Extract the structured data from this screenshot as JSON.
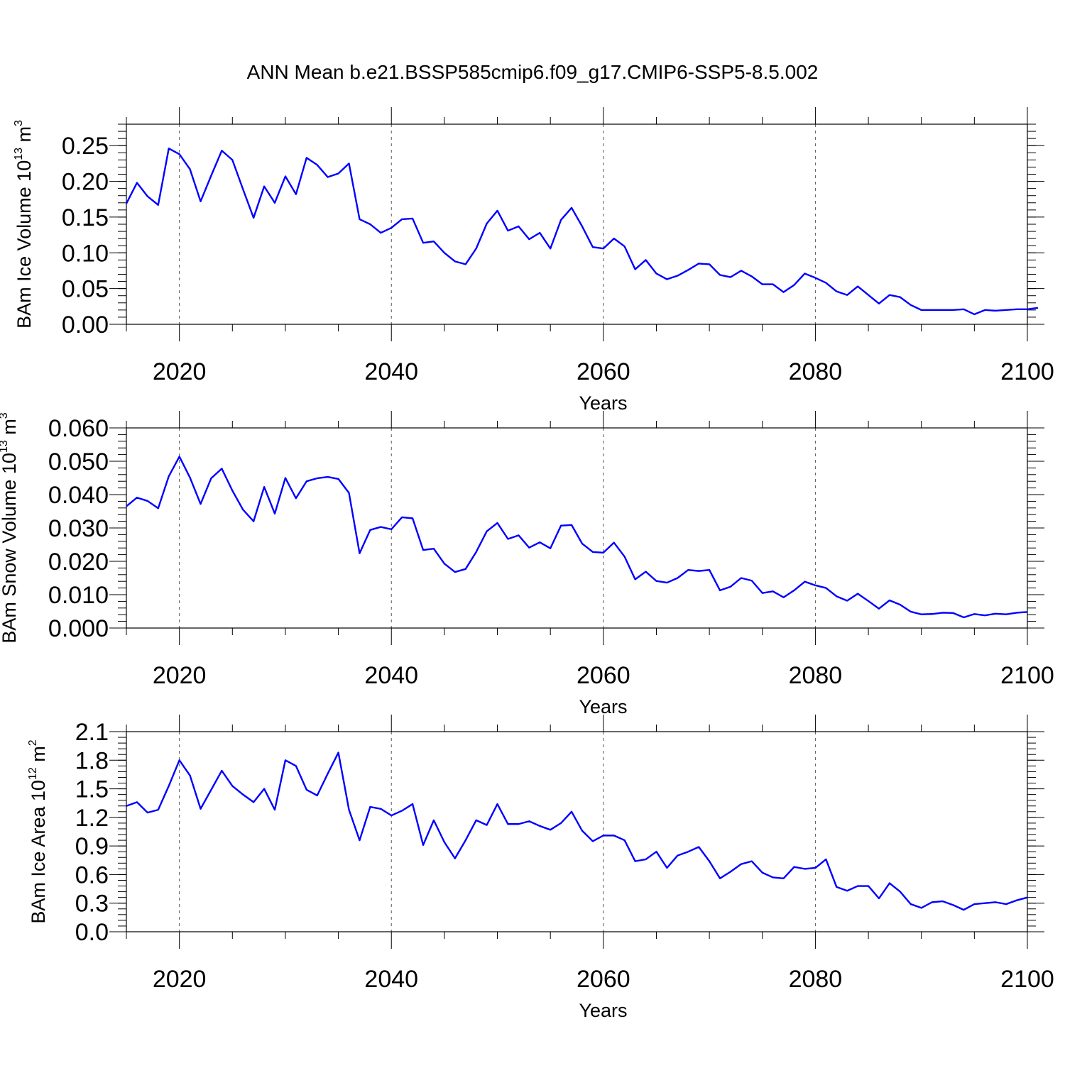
{
  "title": "ANN Mean b.e21.BSSP585cmip6.f09_g17.CMIP6-SSP5-8.5.002",
  "colors": {
    "line": "#0000ff",
    "axis": "#000000",
    "grid": "#555555"
  },
  "chart_data": [
    {
      "type": "line",
      "ylabel": {
        "main": "BAm Ice Volume 10",
        "sup": "13",
        "unit": " m",
        "unit_sup": "3"
      },
      "xlabel": "Years",
      "xlim": [
        2015,
        2100
      ],
      "ylim": [
        0,
        0.28
      ],
      "yticks": [
        0.0,
        0.05,
        0.1,
        0.15,
        0.2,
        0.25
      ],
      "ytick_labels": [
        "0.00",
        "0.05",
        "0.10",
        "0.15",
        "0.20",
        "0.25"
      ],
      "xticks": [
        2020,
        2040,
        2060,
        2080,
        2100
      ],
      "xtick_labels": [
        "2020",
        "2040",
        "2060",
        "2080",
        "2100"
      ],
      "grid": "vertical dashed at major x ticks",
      "x_start": 2015,
      "series": [
        {
          "values": [
            0.169,
            0.198,
            0.179,
            0.167,
            0.246,
            0.238,
            0.217,
            0.172,
            0.208,
            0.243,
            0.23,
            0.189,
            0.149,
            0.193,
            0.17,
            0.207,
            0.182,
            0.233,
            0.223,
            0.206,
            0.211,
            0.225,
            0.147,
            0.14,
            0.128,
            0.135,
            0.147,
            0.148,
            0.114,
            0.116,
            0.1,
            0.088,
            0.084,
            0.106,
            0.141,
            0.159,
            0.131,
            0.137,
            0.119,
            0.128,
            0.106,
            0.146,
            0.163,
            0.137,
            0.108,
            0.106,
            0.12,
            0.109,
            0.077,
            0.09,
            0.071,
            0.063,
            0.068,
            0.076,
            0.085,
            0.084,
            0.069,
            0.066,
            0.075,
            0.067,
            0.056,
            0.056,
            0.045,
            0.055,
            0.071,
            0.065,
            0.058,
            0.046,
            0.041,
            0.053,
            0.041,
            0.029,
            0.041,
            0.038,
            0.027,
            0.02,
            0.02,
            0.02,
            0.02,
            0.021,
            0.014,
            0.02,
            0.019,
            0.02,
            0.021,
            0.021,
            0.023
          ]
        }
      ]
    },
    {
      "type": "line",
      "ylabel": {
        "main": "BAm Snow Volume 10",
        "sup": "13",
        "unit": " m",
        "unit_sup": "3"
      },
      "xlabel": "Years",
      "xlim": [
        2015,
        2100
      ],
      "ylim": [
        0,
        0.06
      ],
      "yticks": [
        0.0,
        0.01,
        0.02,
        0.03,
        0.04,
        0.05,
        0.06
      ],
      "ytick_labels": [
        "0.000",
        "0.010",
        "0.020",
        "0.030",
        "0.040",
        "0.050",
        "0.060"
      ],
      "xticks": [
        2020,
        2040,
        2060,
        2080,
        2100
      ],
      "xtick_labels": [
        "2020",
        "2040",
        "2060",
        "2080",
        "2100"
      ],
      "grid": "vertical dashed at major x ticks",
      "x_start": 2015,
      "series": [
        {
          "values": [
            0.0365,
            0.0391,
            0.0381,
            0.0359,
            0.0455,
            0.0514,
            0.0451,
            0.0372,
            0.0449,
            0.0478,
            0.0412,
            0.0355,
            0.032,
            0.0423,
            0.0343,
            0.045,
            0.0389,
            0.044,
            0.0449,
            0.0453,
            0.0447,
            0.0405,
            0.0224,
            0.0294,
            0.0303,
            0.0296,
            0.0332,
            0.0329,
            0.0234,
            0.0238,
            0.0193,
            0.0168,
            0.0177,
            0.0228,
            0.029,
            0.0315,
            0.0267,
            0.0278,
            0.0241,
            0.0257,
            0.0239,
            0.0307,
            0.0309,
            0.0253,
            0.0228,
            0.0226,
            0.0256,
            0.0214,
            0.0146,
            0.0169,
            0.0141,
            0.0136,
            0.015,
            0.0174,
            0.0171,
            0.0174,
            0.0113,
            0.0124,
            0.015,
            0.0142,
            0.0105,
            0.011,
            0.0092,
            0.0113,
            0.0139,
            0.0128,
            0.012,
            0.0095,
            0.0082,
            0.0103,
            0.0081,
            0.0058,
            0.0083,
            0.007,
            0.0049,
            0.0041,
            0.0042,
            0.0046,
            0.0045,
            0.0032,
            0.0042,
            0.0038,
            0.0043,
            0.0041,
            0.0046,
            0.0048
          ]
        }
      ]
    },
    {
      "type": "line",
      "ylabel": {
        "main": "BAm Ice Area 10",
        "sup": "12",
        "unit": " m",
        "unit_sup": "2"
      },
      "xlabel": "Years",
      "xlim": [
        2015,
        2100
      ],
      "ylim": [
        0,
        2.1
      ],
      "yticks": [
        0.0,
        0.3,
        0.6,
        0.9,
        1.2,
        1.5,
        1.8,
        2.1
      ],
      "ytick_labels": [
        "0.0",
        "0.3",
        "0.6",
        "0.9",
        "1.2",
        "1.5",
        "1.8",
        "2.1"
      ],
      "xticks": [
        2020,
        2040,
        2060,
        2080,
        2100
      ],
      "xtick_labels": [
        "2020",
        "2040",
        "2060",
        "2080",
        "2100"
      ],
      "grid": "vertical dashed at major x ticks",
      "x_start": 2015,
      "series": [
        {
          "values": [
            1.32,
            1.36,
            1.25,
            1.28,
            1.53,
            1.8,
            1.64,
            1.29,
            1.49,
            1.69,
            1.53,
            1.44,
            1.36,
            1.5,
            1.28,
            1.8,
            1.74,
            1.49,
            1.43,
            1.66,
            1.88,
            1.28,
            0.96,
            1.31,
            1.29,
            1.22,
            1.27,
            1.34,
            0.91,
            1.17,
            0.94,
            0.77,
            0.96,
            1.17,
            1.12,
            1.34,
            1.13,
            1.13,
            1.16,
            1.11,
            1.07,
            1.14,
            1.26,
            1.06,
            0.95,
            1.01,
            1.01,
            0.96,
            0.74,
            0.76,
            0.84,
            0.67,
            0.8,
            0.84,
            0.89,
            0.74,
            0.56,
            0.63,
            0.71,
            0.74,
            0.62,
            0.57,
            0.56,
            0.68,
            0.66,
            0.67,
            0.76,
            0.47,
            0.43,
            0.48,
            0.48,
            0.35,
            0.51,
            0.42,
            0.29,
            0.25,
            0.31,
            0.32,
            0.28,
            0.23,
            0.29,
            0.3,
            0.31,
            0.29,
            0.33,
            0.36
          ]
        }
      ]
    }
  ]
}
